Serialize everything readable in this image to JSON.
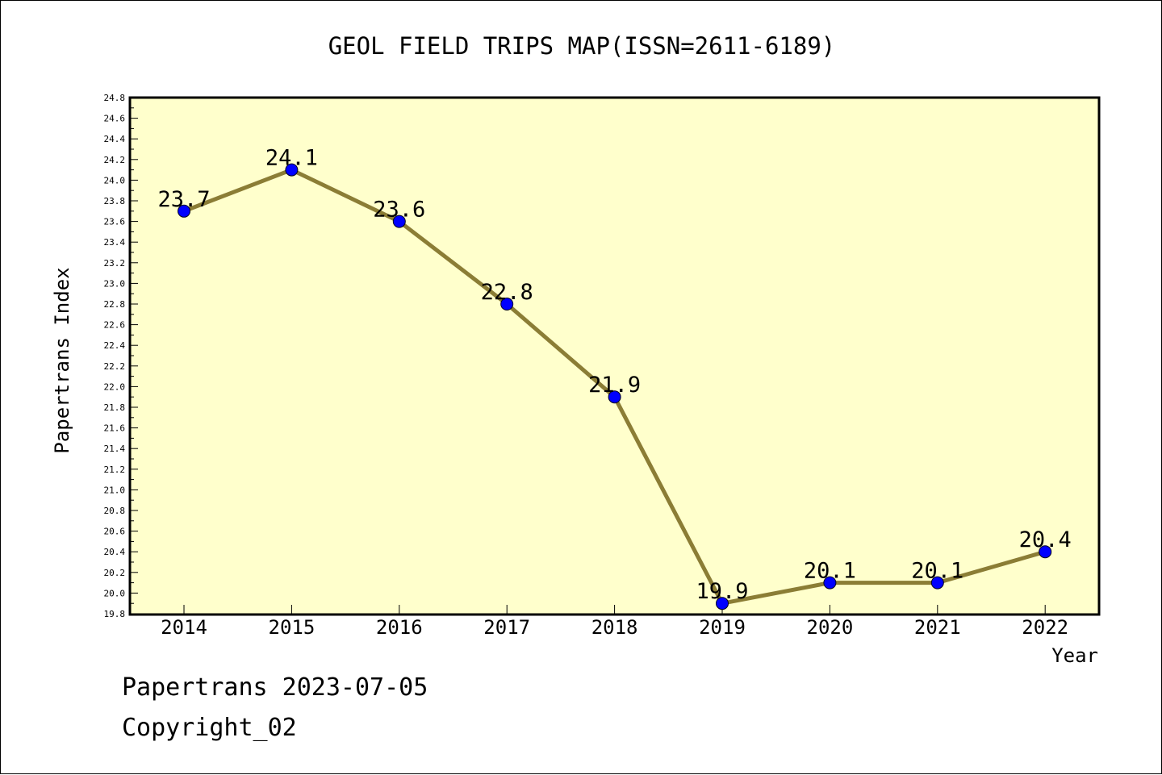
{
  "chart_data": {
    "type": "line",
    "title": "GEOL FIELD TRIPS MAP(ISSN=2611-6189)",
    "xlabel": "Year",
    "ylabel": "Papertrans Index",
    "categories": [
      "2014",
      "2015",
      "2016",
      "2017",
      "2018",
      "2019",
      "2020",
      "2021",
      "2022"
    ],
    "values": [
      23.7,
      24.1,
      23.6,
      22.8,
      21.9,
      19.9,
      20.1,
      20.1,
      20.4
    ],
    "value_labels": [
      "23.7",
      "24.1",
      "23.6",
      "22.8",
      "21.9",
      "19.9",
      "20.1",
      "20.1",
      "20.4"
    ],
    "ylim": [
      19.8,
      24.8
    ],
    "y_ticks": [
      "19.8",
      "20.0",
      "20.2",
      "20.4",
      "20.6",
      "20.8",
      "21.0",
      "21.2",
      "21.4",
      "21.6",
      "21.8",
      "22.0",
      "22.2",
      "22.4",
      "22.6",
      "22.8",
      "23.0",
      "23.2",
      "23.4",
      "23.6",
      "23.8",
      "24.0",
      "24.2",
      "24.4",
      "24.6",
      "24.8"
    ],
    "grid": false,
    "colors": {
      "plot_background": "#ffffcc",
      "line": "#8b7d35",
      "marker": "#0000ff"
    }
  },
  "footer": {
    "line1": "Papertrans 2023-07-05",
    "line2": "Copyright_02"
  }
}
